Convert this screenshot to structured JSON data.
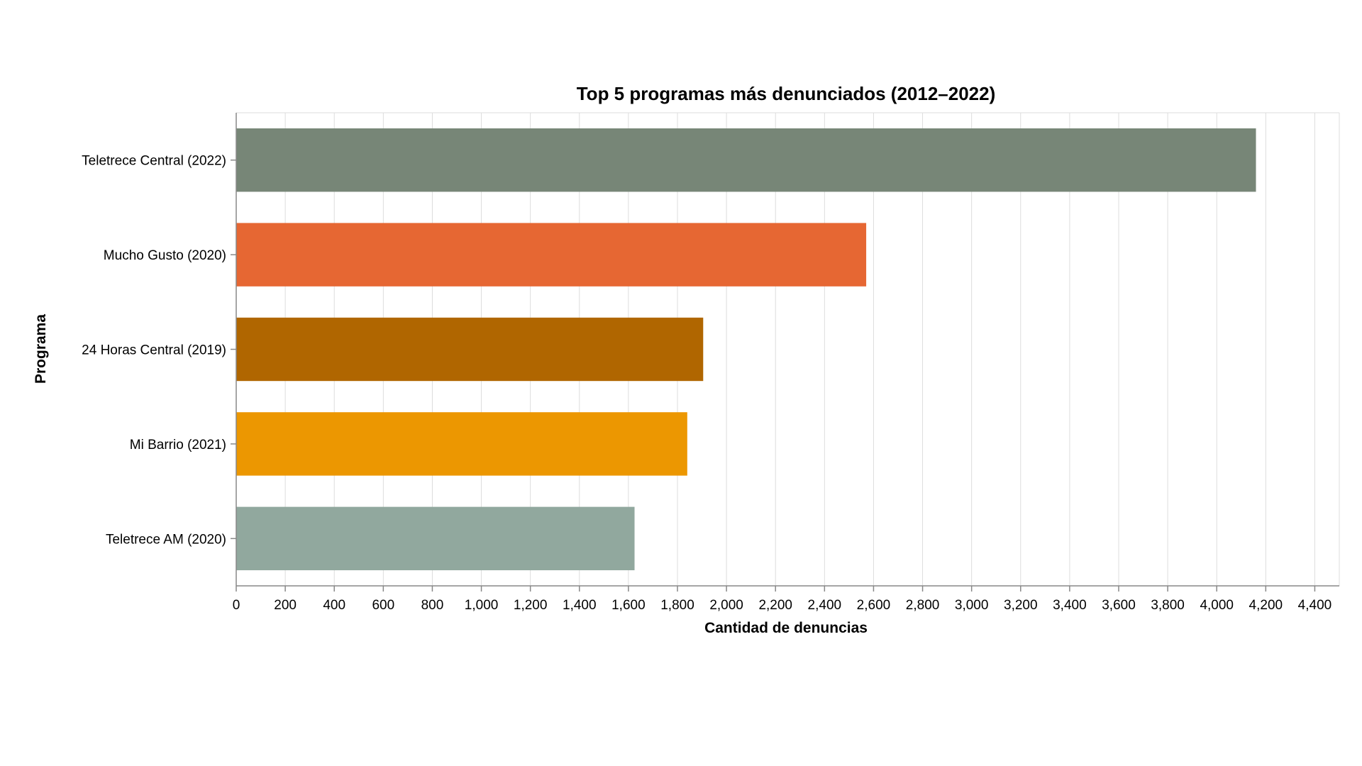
{
  "chart_data": {
    "type": "bar",
    "orientation": "horizontal",
    "title": "Top 5 programas más denunciados (2012–2022)",
    "xlabel": "Cantidad de denuncias",
    "ylabel": "Programa",
    "categories": [
      "Teletrece Central (2022)",
      "Mucho Gusto (2020)",
      "24 Horas Central (2019)",
      "Mi Barrio (2021)",
      "Teletrece AM (2020)"
    ],
    "values": [
      4160,
      2570,
      1905,
      1840,
      1625
    ],
    "colors": [
      "#778677",
      "#e66733",
      "#b06600",
      "#ec9701",
      "#91a89e"
    ],
    "xlim": [
      0,
      4500
    ],
    "xticks": [
      0,
      200,
      400,
      600,
      800,
      1000,
      1200,
      1400,
      1600,
      1800,
      2000,
      2200,
      2400,
      2600,
      2800,
      3000,
      3200,
      3400,
      3600,
      3800,
      4000,
      4200,
      4400
    ],
    "xtick_labels": [
      "0",
      "200",
      "400",
      "600",
      "800",
      "1,000",
      "1,200",
      "1,400",
      "1,600",
      "1,800",
      "2,000",
      "2,200",
      "2,400",
      "2,600",
      "2,800",
      "3,000",
      "3,200",
      "3,400",
      "3,600",
      "3,800",
      "4,000",
      "4,200",
      "4,400"
    ],
    "grid": true,
    "legend": "none"
  }
}
